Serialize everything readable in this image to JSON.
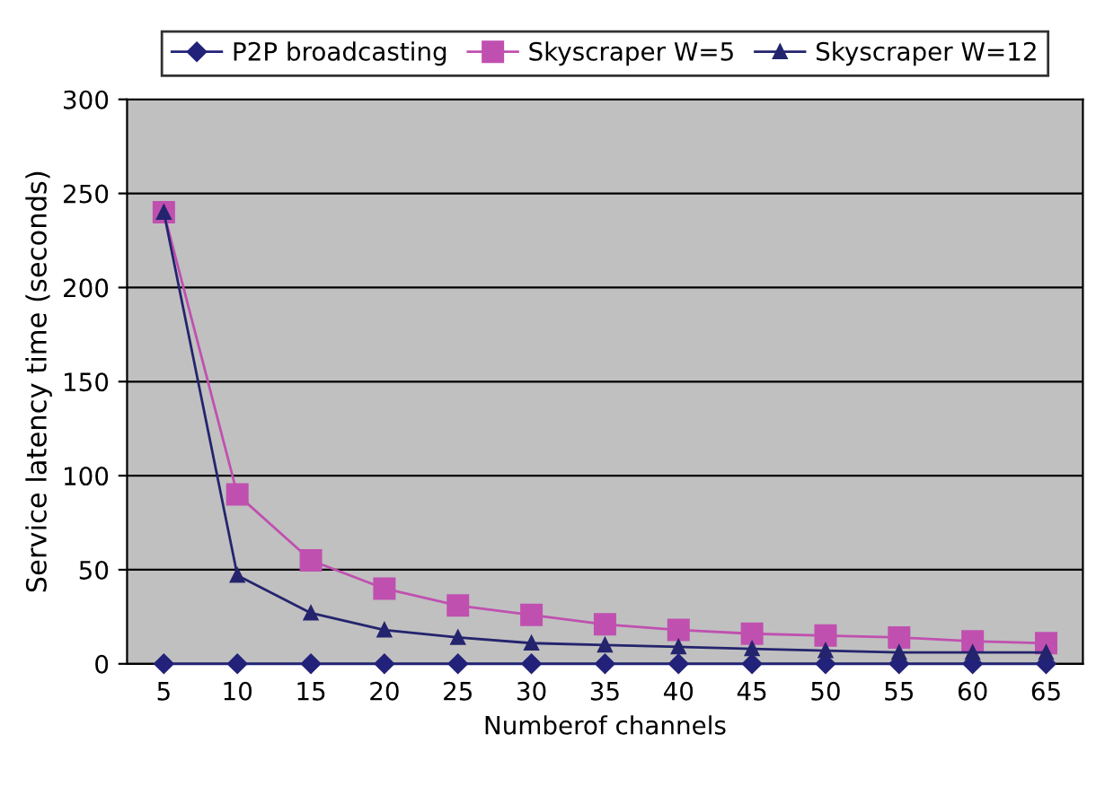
{
  "chart_data": {
    "type": "line",
    "xlabel": "Numberof channels",
    "ylabel": "Service latency time (seconds)",
    "categories": [
      "5",
      "10",
      "15",
      "20",
      "25",
      "30",
      "35",
      "40",
      "45",
      "50",
      "55",
      "60",
      "65"
    ],
    "series": [
      {
        "name": "P2P broadcasting",
        "color": "#22227a",
        "marker": "diamond",
        "values": [
          0,
          0,
          0,
          0,
          0,
          0,
          0,
          0,
          0,
          0,
          0,
          0,
          0
        ]
      },
      {
        "name": "Skyscraper W=5",
        "color": "#c050b0",
        "marker": "square",
        "values": [
          240,
          90,
          55,
          40,
          31,
          26,
          21,
          18,
          16,
          15,
          14,
          12,
          11
        ]
      },
      {
        "name": "Skyscraper W=12",
        "color": "#24246e",
        "marker": "triangle",
        "values": [
          240,
          47,
          27,
          18,
          14,
          11,
          10,
          9,
          8,
          7,
          6,
          6,
          6
        ]
      }
    ],
    "ylim": [
      0,
      300
    ],
    "yticks": [
      0,
      50,
      100,
      150,
      200,
      250,
      300
    ],
    "grid": "y",
    "legend": "top",
    "line_style": "solid"
  }
}
